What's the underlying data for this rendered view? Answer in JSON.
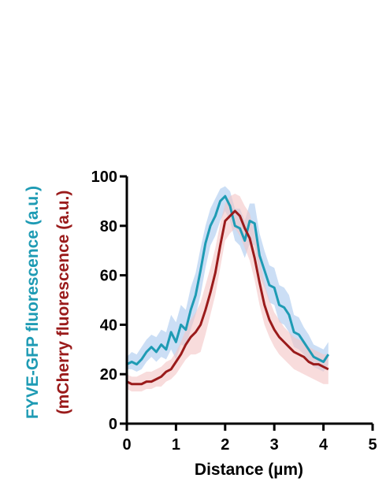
{
  "chart_data": {
    "type": "line",
    "xlabel": "Distance (µm)",
    "ylabel_lines": [
      {
        "text": "FYVE-GFP fluorescence (a.u.)",
        "color": "#1e9bb4"
      },
      {
        "text": "(mCherry fluorescence (a.u.)",
        "color": "#9a1b1b"
      }
    ],
    "xlim": [
      0,
      5
    ],
    "ylim": [
      0,
      100
    ],
    "x_ticks": [
      "0",
      "1",
      "2",
      "3",
      "4",
      "5"
    ],
    "y_ticks": [
      "0",
      "20",
      "40",
      "60",
      "80",
      "100"
    ],
    "grid": false,
    "series": [
      {
        "color": "#1e9bb4",
        "band_color": "#a9c8ee",
        "x": [
          0,
          0.1,
          0.2,
          0.3,
          0.4,
          0.5,
          0.6,
          0.7,
          0.8,
          0.9,
          1.0,
          1.1,
          1.2,
          1.3,
          1.4,
          1.5,
          1.6,
          1.7,
          1.8,
          1.9,
          2.0,
          2.1,
          2.2,
          2.3,
          2.4,
          2.5,
          2.6,
          2.7,
          2.8,
          2.9,
          3.0,
          3.1,
          3.2,
          3.3,
          3.4,
          3.5,
          3.6,
          3.7,
          3.8,
          3.9,
          4.0,
          4.1
        ],
        "y": [
          24,
          25,
          24,
          26,
          29,
          31,
          29,
          32,
          30,
          37,
          33,
          40,
          38,
          46,
          52,
          62,
          73,
          80,
          84,
          90,
          92,
          88,
          80,
          79,
          74,
          82,
          81,
          68,
          62,
          56,
          55,
          48,
          47,
          44,
          37,
          36,
          33,
          30,
          27,
          26,
          25,
          28
        ],
        "lower": [
          22,
          22,
          21,
          22,
          25,
          27,
          25,
          27,
          26,
          30,
          26,
          32,
          31,
          38,
          44,
          52,
          63,
          72,
          76,
          82,
          86,
          82,
          74,
          72,
          67,
          73,
          72,
          60,
          55,
          49,
          48,
          41,
          40,
          37,
          31,
          30,
          28,
          25,
          23,
          22,
          21,
          24
        ],
        "upper": [
          27,
          29,
          28,
          31,
          34,
          36,
          35,
          38,
          37,
          44,
          41,
          48,
          46,
          55,
          61,
          71,
          80,
          87,
          91,
          95,
          96,
          94,
          87,
          87,
          82,
          89,
          89,
          77,
          70,
          64,
          63,
          56,
          55,
          52,
          44,
          43,
          39,
          36,
          32,
          31,
          30,
          33
        ]
      },
      {
        "color": "#9a1b1b",
        "band_color": "#f4c4c4",
        "x": [
          0,
          0.1,
          0.2,
          0.3,
          0.4,
          0.5,
          0.6,
          0.7,
          0.8,
          0.9,
          1.0,
          1.1,
          1.2,
          1.3,
          1.4,
          1.5,
          1.6,
          1.7,
          1.8,
          1.9,
          2.0,
          2.1,
          2.2,
          2.3,
          2.4,
          2.5,
          2.6,
          2.7,
          2.8,
          2.9,
          3.0,
          3.1,
          3.2,
          3.3,
          3.4,
          3.5,
          3.6,
          3.7,
          3.8,
          3.9,
          4.0,
          4.1
        ],
        "y": [
          17,
          16,
          16,
          16,
          17,
          17,
          18,
          19,
          21,
          22,
          25,
          28,
          32,
          35,
          37,
          40,
          46,
          53,
          61,
          72,
          82,
          84,
          86,
          84,
          79,
          75,
          67,
          57,
          48,
          42,
          38,
          35,
          33,
          31,
          29,
          28,
          27,
          25,
          24,
          24,
          23,
          22
        ],
        "lower": [
          14,
          13,
          13,
          13,
          14,
          14,
          15,
          15,
          17,
          18,
          20,
          23,
          26,
          28,
          28,
          29,
          36,
          44,
          52,
          63,
          74,
          77,
          79,
          76,
          71,
          66,
          58,
          48,
          40,
          35,
          31,
          28,
          26,
          24,
          22,
          21,
          20,
          19,
          18,
          17,
          16,
          16
        ],
        "upper": [
          20,
          19,
          19,
          20,
          21,
          21,
          22,
          23,
          25,
          26,
          29,
          33,
          38,
          42,
          45,
          49,
          56,
          63,
          71,
          81,
          89,
          92,
          93,
          92,
          88,
          85,
          77,
          67,
          57,
          50,
          45,
          42,
          39,
          37,
          35,
          34,
          33,
          31,
          30,
          29,
          28,
          28
        ]
      }
    ]
  }
}
